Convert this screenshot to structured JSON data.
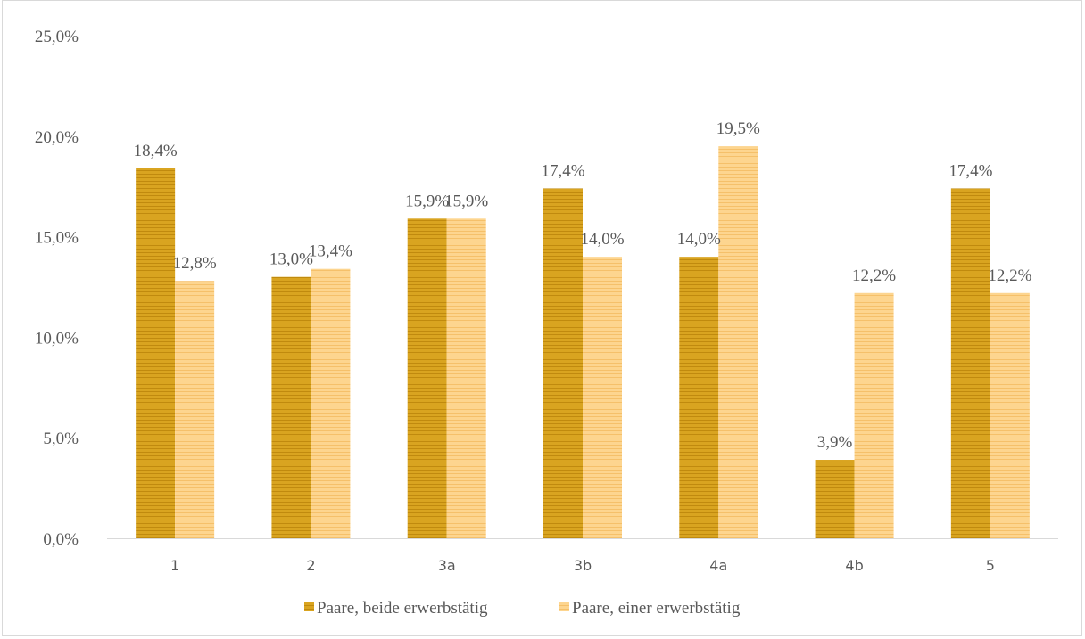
{
  "chart_data": {
    "type": "bar",
    "categories": [
      "1",
      "2",
      "3a",
      "3b",
      "4a",
      "4b",
      "5"
    ],
    "series": [
      {
        "name": "Paare, beide erwerbstätig",
        "values": [
          18.4,
          13.0,
          15.9,
          17.4,
          14.0,
          3.9,
          17.4
        ],
        "labels": [
          "18,4%",
          "13,0%",
          "15,9%",
          "17,4%",
          "14,0%",
          "3,9%",
          "17,4%"
        ],
        "color": "#D9A420",
        "stripe_color": "#C08A0E"
      },
      {
        "name": "Paare, einer erwerbstätig",
        "values": [
          12.8,
          13.4,
          15.9,
          14.0,
          19.5,
          12.2,
          12.2
        ],
        "labels": [
          "12,8%",
          "13,4%",
          "15,9%",
          "14,0%",
          "19,5%",
          "12,2%",
          "12,2%"
        ],
        "color": "#FDD58F",
        "stripe_color": "#F5C06A"
      }
    ],
    "ylim": [
      0,
      25
    ],
    "yticks": [
      0,
      5,
      10,
      15,
      20,
      25
    ],
    "ytick_labels": [
      "0,0%",
      "5,0%",
      "10,0%",
      "15,0%",
      "20,0%",
      "25,0%"
    ],
    "grid": false,
    "legend_position": "bottom",
    "title": "",
    "xlabel": "",
    "ylabel": ""
  }
}
